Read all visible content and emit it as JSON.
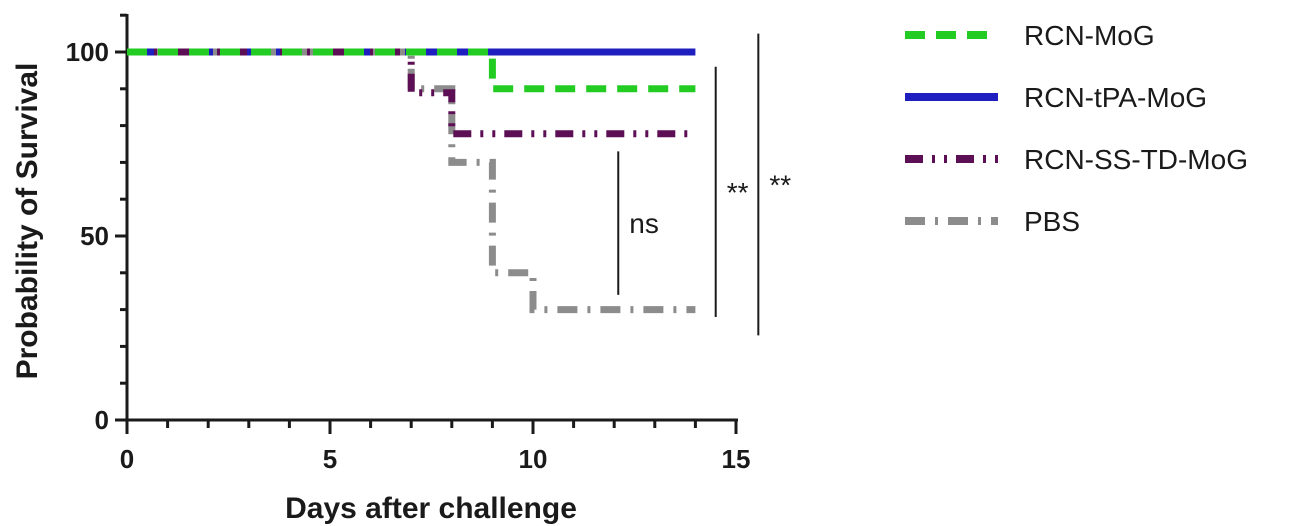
{
  "chart_data": {
    "type": "line",
    "subtype": "kaplan-meier survival",
    "title": "",
    "xlabel": "Days after challenge",
    "ylabel": "Probability of Survival",
    "xlim": [
      0,
      15
    ],
    "ylim": [
      0,
      100
    ],
    "x_ticks": [
      0,
      5,
      10,
      15
    ],
    "y_ticks": [
      0,
      50,
      100
    ],
    "grid": false,
    "legend_position": "right",
    "series": [
      {
        "name": "RCN-MoG",
        "color": "#22cc22",
        "dash": "dashed",
        "points": [
          [
            0,
            100
          ],
          [
            9,
            100
          ],
          [
            9,
            90
          ],
          [
            14,
            90
          ]
        ]
      },
      {
        "name": "RCN-tPA-MoG",
        "color": "#1f1fbf",
        "dash": "solid",
        "points": [
          [
            0,
            100
          ],
          [
            14,
            100
          ]
        ]
      },
      {
        "name": "RCN-SS-TD-MoG",
        "color": "#5c0f55",
        "dash": "dash-dot-dot",
        "points": [
          [
            0,
            100
          ],
          [
            7,
            100
          ],
          [
            7,
            88.9
          ],
          [
            8,
            88.9
          ],
          [
            8,
            77.8
          ],
          [
            14,
            77.8
          ]
        ]
      },
      {
        "name": "PBS",
        "color": "#8c8c8c",
        "dash": "dash-dot",
        "points": [
          [
            0,
            100
          ],
          [
            7,
            100
          ],
          [
            7,
            90
          ],
          [
            8,
            90
          ],
          [
            8,
            70
          ],
          [
            9,
            70
          ],
          [
            9,
            40
          ],
          [
            10,
            40
          ],
          [
            10,
            30
          ],
          [
            14,
            30
          ]
        ]
      }
    ],
    "annotations": [
      {
        "text": "ns",
        "x": 12.1,
        "y_range": [
          34,
          73
        ]
      },
      {
        "text": "**",
        "x": 14.5,
        "y_range": [
          28,
          96
        ]
      },
      {
        "text": "**",
        "x": 15.55,
        "y_range": [
          23,
          105
        ]
      }
    ]
  }
}
